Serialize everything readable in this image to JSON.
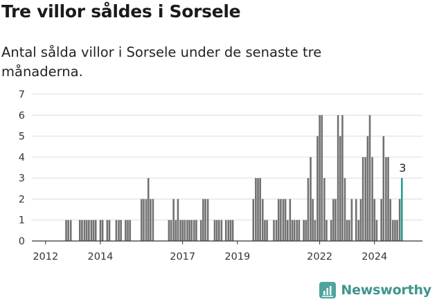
{
  "header": {
    "title": "Tre villor såldes i Sorsele",
    "subtitle": "Antal sålda villor i Sorsele under de senaste tre månaderna."
  },
  "brand": {
    "name": "Newsworthy",
    "color": "#3f958d"
  },
  "chart_data": {
    "type": "bar",
    "x_unit": "year (fractional, monthly bins)",
    "xlim": [
      2011.5,
      2025.75
    ],
    "ylim": [
      0,
      7
    ],
    "yticks": [
      0,
      1,
      2,
      3,
      4,
      5,
      6,
      7
    ],
    "xticks": [
      2012,
      2014,
      2017,
      2019,
      2022,
      2024
    ],
    "grid": true,
    "bar_color": "#707070",
    "highlight_color": "#1a9e8f",
    "x": [
      2012.75,
      2012.83,
      2012.92,
      2013.25,
      2013.33,
      2013.42,
      2013.5,
      2013.58,
      2013.67,
      2013.75,
      2013.83,
      2014.0,
      2014.08,
      2014.25,
      2014.33,
      2014.58,
      2014.67,
      2014.75,
      2014.92,
      2015.0,
      2015.08,
      2015.5,
      2015.58,
      2015.67,
      2015.75,
      2015.83,
      2015.92,
      2016.5,
      2016.58,
      2016.67,
      2016.75,
      2016.83,
      2016.92,
      2017.0,
      2017.08,
      2017.17,
      2017.25,
      2017.33,
      2017.42,
      2017.5,
      2017.67,
      2017.75,
      2017.83,
      2017.92,
      2018.17,
      2018.25,
      2018.33,
      2018.42,
      2018.58,
      2018.67,
      2018.75,
      2018.83,
      2019.58,
      2019.67,
      2019.75,
      2019.83,
      2019.92,
      2020.0,
      2020.08,
      2020.33,
      2020.42,
      2020.5,
      2020.58,
      2020.67,
      2020.75,
      2020.83,
      2020.92,
      2021.0,
      2021.08,
      2021.17,
      2021.25,
      2021.42,
      2021.5,
      2021.58,
      2021.67,
      2021.75,
      2021.83,
      2021.92,
      2022.0,
      2022.08,
      2022.17,
      2022.25,
      2022.42,
      2022.5,
      2022.58,
      2022.67,
      2022.75,
      2022.83,
      2022.92,
      2023.0,
      2023.08,
      2023.17,
      2023.33,
      2023.42,
      2023.5,
      2023.58,
      2023.67,
      2023.75,
      2023.83,
      2023.92,
      2024.0,
      2024.08,
      2024.25,
      2024.33,
      2024.42,
      2024.5,
      2024.58,
      2024.67,
      2024.75,
      2024.83,
      2024.92,
      2025.0
    ],
    "values": [
      1,
      1,
      1,
      1,
      1,
      1,
      1,
      1,
      1,
      1,
      1,
      1,
      1,
      1,
      1,
      1,
      1,
      1,
      1,
      1,
      1,
      2,
      2,
      2,
      3,
      2,
      2,
      1,
      1,
      2,
      1,
      2,
      1,
      1,
      1,
      1,
      1,
      1,
      1,
      1,
      1,
      2,
      2,
      2,
      1,
      1,
      1,
      1,
      1,
      1,
      1,
      1,
      2,
      3,
      3,
      3,
      2,
      1,
      1,
      1,
      1,
      2,
      2,
      2,
      2,
      1,
      2,
      1,
      1,
      1,
      1,
      1,
      1,
      3,
      4,
      2,
      1,
      5,
      6,
      6,
      3,
      1,
      1,
      2,
      2,
      6,
      5,
      6,
      3,
      1,
      1,
      2,
      2,
      1,
      2,
      4,
      4,
      5,
      6,
      4,
      2,
      1,
      2,
      5,
      4,
      4,
      2,
      1,
      1,
      1,
      2,
      3
    ],
    "annotation": {
      "x": 2025.0,
      "value": 3,
      "label": "3"
    }
  }
}
